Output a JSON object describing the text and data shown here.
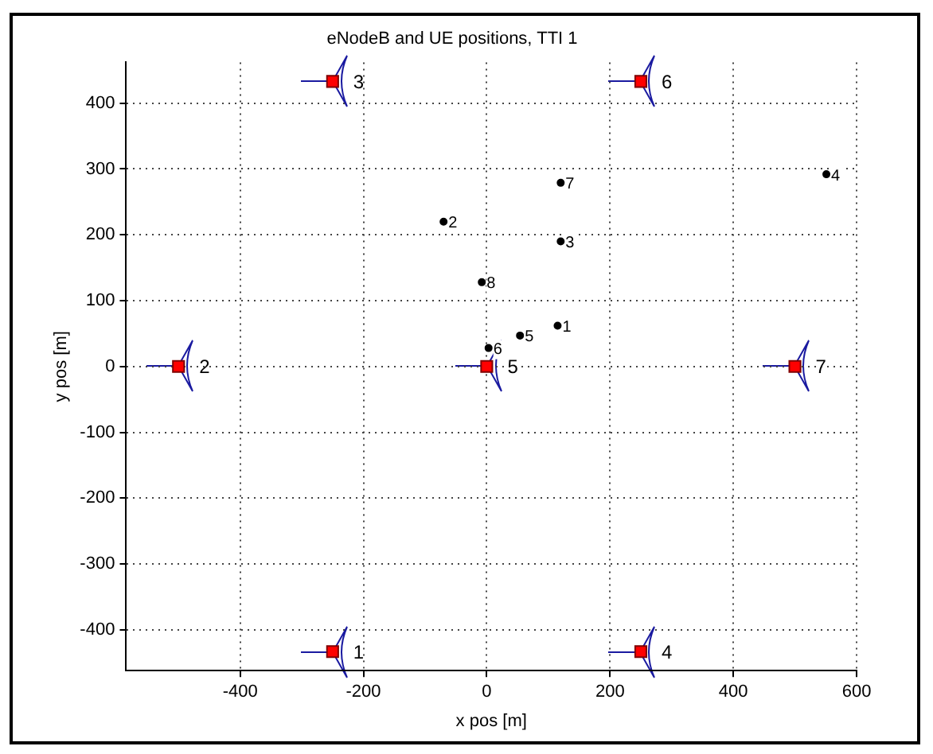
{
  "chart_data": {
    "type": "scatter",
    "title": "eNodeB and UE positions, TTI 1",
    "xlabel": "x pos [m]",
    "ylabel": "y pos [m]",
    "xlim": [
      -585,
      600
    ],
    "xticks": [
      -400,
      -200,
      0,
      200,
      400,
      600
    ],
    "ylim": [
      -462,
      462
    ],
    "yticks": [
      -400,
      -300,
      -200,
      -100,
      0,
      100,
      200,
      300,
      400
    ],
    "grid": true,
    "series": [
      {
        "marker": "square",
        "color": "#ff0000",
        "x": [
          -250,
          -500,
          -250,
          250,
          0,
          250,
          500
        ],
        "values": [
          -433,
          0,
          433,
          -433,
          0,
          433,
          0
        ]
      },
      {
        "marker": "circle",
        "color": "#000000",
        "x": [
          115,
          -70,
          120,
          551,
          54,
          3,
          120,
          -8
        ],
        "values": [
          62,
          220,
          190,
          292,
          47,
          28,
          279,
          128
        ]
      }
    ],
    "annotations": [
      {
        "text": "1",
        "x": -250,
        "y": -433
      },
      {
        "text": "2",
        "x": -500,
        "y": 0
      },
      {
        "text": "3",
        "x": -250,
        "y": 433
      },
      {
        "text": "4",
        "x": 250,
        "y": -433
      },
      {
        "text": "5",
        "x": 0,
        "y": 0
      },
      {
        "text": "6",
        "x": 250,
        "y": 433
      },
      {
        "text": "7",
        "x": 500,
        "y": 0
      },
      {
        "text": "1",
        "x": 115,
        "y": 62
      },
      {
        "text": "2",
        "x": -70,
        "y": 220
      },
      {
        "text": "3",
        "x": 120,
        "y": 190
      },
      {
        "text": "4",
        "x": 551,
        "y": 292
      },
      {
        "text": "5",
        "x": 54,
        "y": 47
      },
      {
        "text": "6",
        "x": 3,
        "y": 28
      },
      {
        "text": "7",
        "x": 120,
        "y": 279
      },
      {
        "text": "8",
        "x": -8,
        "y": 128
      }
    ]
  }
}
